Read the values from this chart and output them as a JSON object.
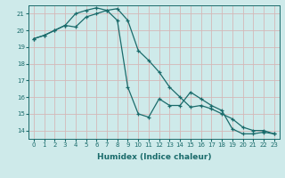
{
  "xlabel": "Humidex (Indice chaleur)",
  "bg_color": "#ceeaea",
  "grid_color": "#d4b8b8",
  "line_color": "#1a6b6b",
  "ylim": [
    13.5,
    21.5
  ],
  "xlim": [
    -0.5,
    23.5
  ],
  "yticks": [
    14,
    15,
    16,
    17,
    18,
    19,
    20,
    21
  ],
  "xticks": [
    0,
    1,
    2,
    3,
    4,
    5,
    6,
    7,
    8,
    9,
    10,
    11,
    12,
    13,
    14,
    15,
    16,
    17,
    18,
    19,
    20,
    21,
    22,
    23
  ],
  "line1_x": [
    0,
    1,
    2,
    3,
    4,
    5,
    6,
    7,
    8,
    9,
    10,
    11,
    12,
    13,
    14,
    15,
    16,
    17,
    18,
    19,
    20,
    21,
    22,
    23
  ],
  "line1_y": [
    19.5,
    19.7,
    20.0,
    20.3,
    21.0,
    21.2,
    21.35,
    21.2,
    20.6,
    16.6,
    15.0,
    14.8,
    15.9,
    15.5,
    15.5,
    16.3,
    15.9,
    15.5,
    15.2,
    14.1,
    13.8,
    13.8,
    13.9,
    13.8
  ],
  "line2_x": [
    0,
    1,
    2,
    3,
    4,
    5,
    6,
    7,
    8,
    9,
    10,
    11,
    12,
    13,
    14,
    15,
    16,
    17,
    18,
    19,
    20,
    21,
    22,
    23
  ],
  "line2_y": [
    19.5,
    19.7,
    20.0,
    20.3,
    20.2,
    20.8,
    21.0,
    21.2,
    21.3,
    20.6,
    18.8,
    18.2,
    17.5,
    16.6,
    16.0,
    15.4,
    15.5,
    15.3,
    15.0,
    14.7,
    14.2,
    14.0,
    14.0,
    13.8
  ]
}
